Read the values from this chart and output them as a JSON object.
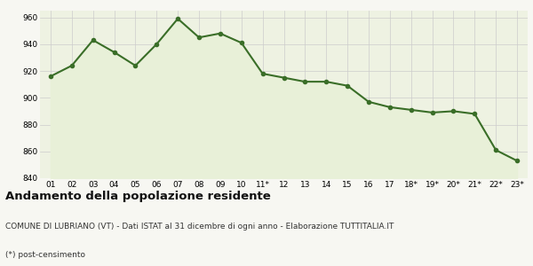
{
  "x_labels": [
    "01",
    "02",
    "03",
    "04",
    "05",
    "06",
    "07",
    "08",
    "09",
    "10",
    "11*",
    "12",
    "13",
    "14",
    "15",
    "16",
    "17",
    "18*",
    "19*",
    "20*",
    "21*",
    "22*",
    "23*"
  ],
  "y_values": [
    916,
    924,
    943,
    934,
    924,
    940,
    959,
    945,
    948,
    941,
    918,
    915,
    912,
    912,
    909,
    897,
    893,
    891,
    889,
    890,
    888,
    861,
    853
  ],
  "line_color": "#3a6e28",
  "fill_color": "#e8f0d8",
  "marker": "o",
  "marker_size": 3,
  "line_width": 1.5,
  "ylim": [
    840,
    965
  ],
  "yticks": [
    840,
    860,
    880,
    900,
    920,
    940,
    960
  ],
  "grid_color": "#cccccc",
  "background_color": "#f7f7f2",
  "plot_bg_color": "#eef2e2",
  "title": "Andamento della popolazione residente",
  "subtitle": "COMUNE DI LUBRIANO (VT) - Dati ISTAT al 31 dicembre di ogni anno - Elaborazione TUTTITALIA.IT",
  "footnote": "(*) post-censimento",
  "title_fontsize": 9.5,
  "subtitle_fontsize": 6.5,
  "footnote_fontsize": 6.5,
  "tick_fontsize": 6.5,
  "title_color": "#111111",
  "subtitle_color": "#333333"
}
